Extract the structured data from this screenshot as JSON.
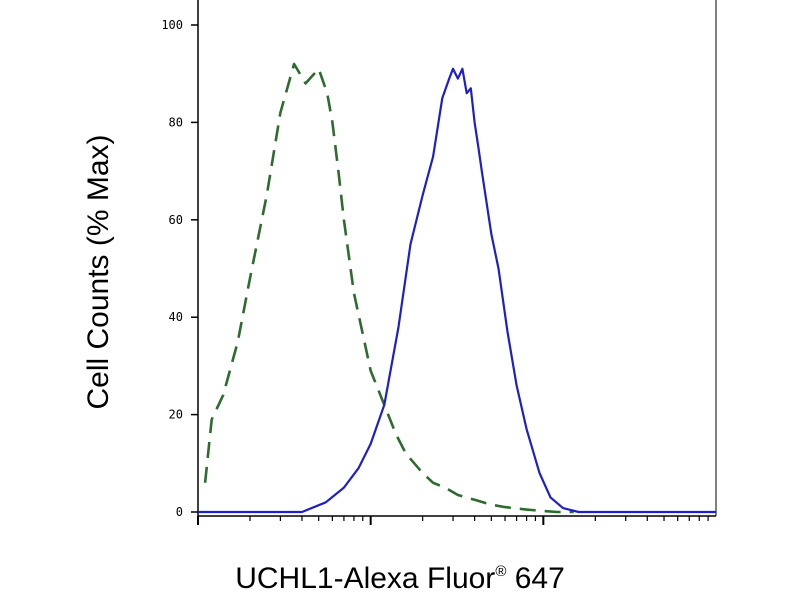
{
  "chart_data": {
    "type": "line",
    "title": "",
    "xlabel": "UCHL1-Alexa Fluor",
    "xlabel_mark": "®",
    "xlabel_suffix": "647",
    "ylabel": "Cell Counts (% Max)",
    "x_scale": "log",
    "xlim": [
      10,
      10000
    ],
    "ylim": [
      0,
      100
    ],
    "y_ticks": [
      "0",
      "20",
      "40",
      "60",
      "80",
      "100"
    ],
    "grid": false,
    "series": [
      {
        "style": "dashed",
        "color": "#2e6b2e",
        "x": [
          11,
          12,
          14,
          17,
          20,
          25,
          30,
          36,
          42,
          50,
          56,
          60,
          65,
          70,
          80,
          100,
          120,
          140,
          160,
          200,
          230,
          270,
          320,
          400,
          500,
          600,
          800,
          1000,
          1200,
          1500
        ],
        "y": [
          6,
          19,
          24,
          35,
          48,
          65,
          82,
          92,
          88,
          91,
          86,
          80,
          70,
          60,
          45,
          29,
          22,
          16,
          12,
          8,
          6,
          5,
          3.5,
          2.5,
          1.5,
          1,
          0.5,
          0.2,
          0,
          0
        ]
      },
      {
        "style": "solid",
        "color": "#1f1fc8",
        "x": [
          10,
          20,
          40,
          55,
          70,
          85,
          100,
          120,
          145,
          170,
          200,
          230,
          260,
          285,
          300,
          320,
          340,
          360,
          380,
          400,
          420,
          440,
          500,
          550,
          620,
          700,
          800,
          950,
          1100,
          1300,
          1600,
          2000,
          3000,
          5000,
          10000
        ],
        "y": [
          0,
          0,
          0,
          2,
          5,
          9,
          14,
          22,
          38,
          55,
          65,
          73,
          85,
          89,
          91,
          89,
          91,
          86,
          87,
          80,
          75,
          70,
          57,
          50,
          37,
          26,
          17,
          8,
          3,
          0.8,
          0,
          0,
          0,
          0,
          0
        ]
      }
    ]
  }
}
